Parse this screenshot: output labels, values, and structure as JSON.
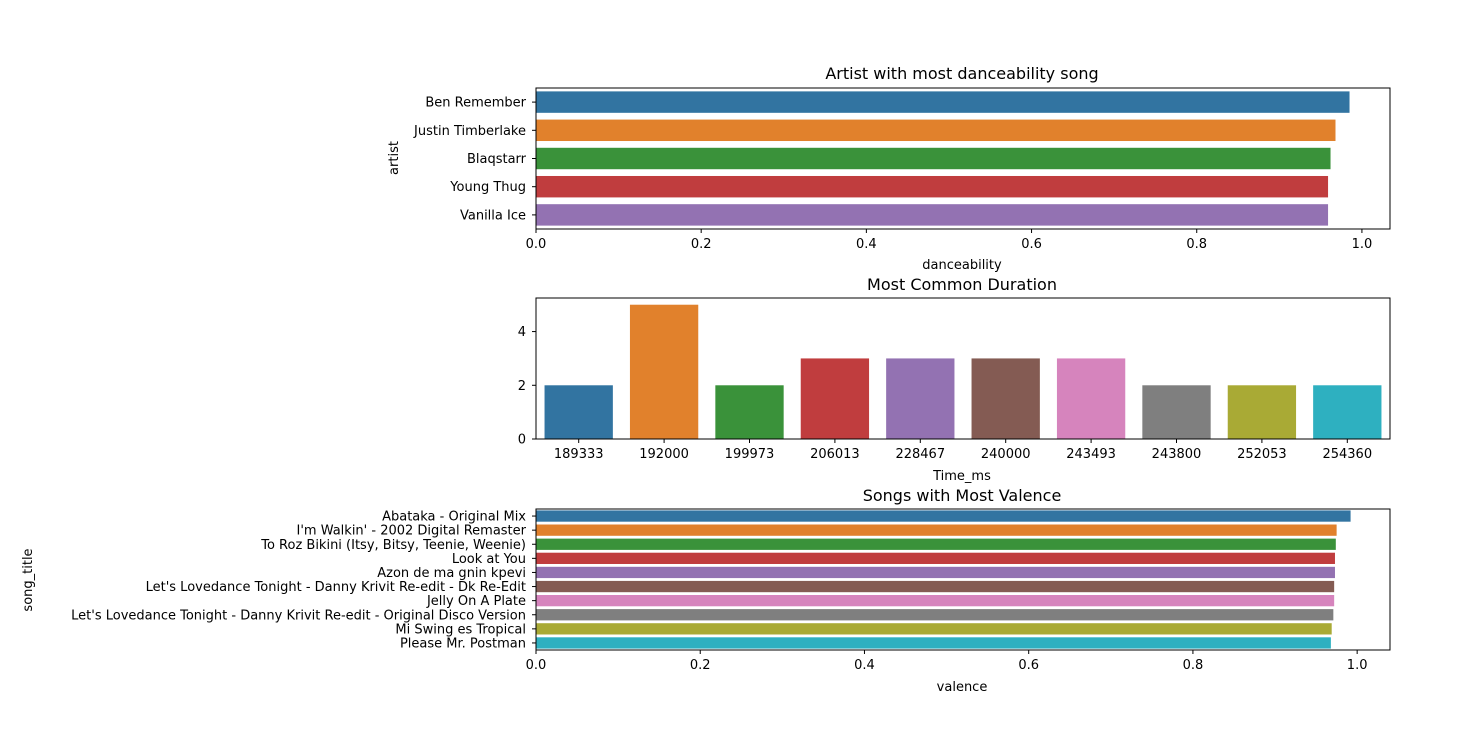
{
  "colors": [
    "#3274a1",
    "#e1812c",
    "#3a923a",
    "#c03d3e",
    "#9372b2",
    "#845b53",
    "#d684bd",
    "#7f7f7f",
    "#a9aa35",
    "#2eb0c0"
  ],
  "chart_data": [
    {
      "type": "bar",
      "orientation": "horizontal",
      "title": "Artist with most danceability song",
      "xlabel": "danceability",
      "ylabel": "artist",
      "categories": [
        "Ben Remember",
        "Justin Timberlake",
        "Blaqstarr",
        "Young Thug",
        "Vanilla Ice"
      ],
      "values": [
        0.985,
        0.968,
        0.962,
        0.959,
        0.959
      ],
      "xlim": [
        0,
        1.034
      ],
      "ticks": [
        0,
        0.2,
        0.4,
        0.6,
        0.8,
        1.0
      ],
      "tick_labels": [
        "0.0",
        "0.2",
        "0.4",
        "0.6",
        "0.8",
        "1.0"
      ]
    },
    {
      "type": "bar",
      "orientation": "vertical",
      "title": "Most Common Duration",
      "xlabel": "Time_ms",
      "ylabel": "",
      "categories": [
        "189333",
        "192000",
        "199973",
        "206013",
        "228467",
        "240000",
        "243493",
        "243800",
        "252053",
        "254360"
      ],
      "values": [
        2,
        5,
        2,
        3,
        3,
        3,
        3,
        2,
        2,
        2
      ],
      "ylim": [
        0,
        5.25
      ],
      "ticks": [
        0,
        2,
        4
      ],
      "tick_labels": [
        "0",
        "2",
        "4"
      ]
    },
    {
      "type": "bar",
      "orientation": "horizontal",
      "title": "Songs with Most Valence",
      "xlabel": "valence",
      "ylabel": "song_title",
      "categories": [
        "Abataka - Original Mix",
        "I'm Walkin' - 2002 Digital Remaster",
        "To Roz Bikini (Itsy, Bitsy, Teenie, Weenie)",
        "Look at You",
        "Azon de ma gnin kpevi",
        "Let's Lovedance Tonight - Danny Krivit Re-edit - Dk Re-Edit",
        "Jelly On A Plate",
        "Let's Lovedance Tonight - Danny Krivit Re-edit - Original Disco Version",
        "Mi Swing es Tropical",
        "Please Mr. Postman"
      ],
      "values": [
        0.992,
        0.975,
        0.974,
        0.973,
        0.973,
        0.972,
        0.972,
        0.971,
        0.969,
        0.968
      ],
      "xlim": [
        0,
        1.04
      ],
      "ticks": [
        0,
        0.2,
        0.4,
        0.6,
        0.8,
        1.0
      ],
      "tick_labels": [
        "0.0",
        "0.2",
        "0.4",
        "0.6",
        "0.8",
        "1.0"
      ]
    }
  ]
}
